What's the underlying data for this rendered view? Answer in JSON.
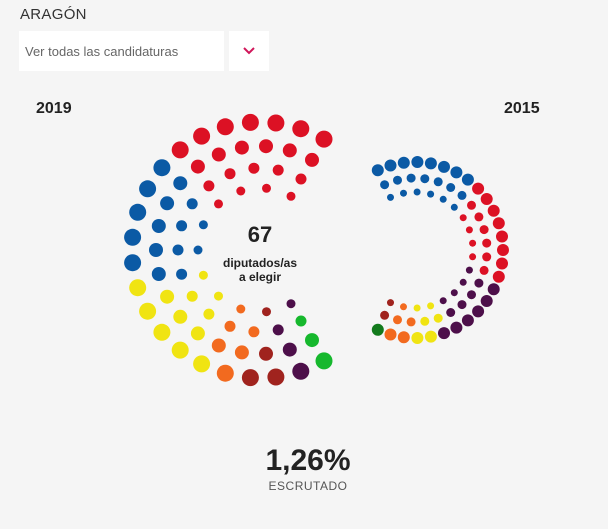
{
  "region": "ARAGÓN",
  "select": {
    "label": "Ver todas las candidaturas"
  },
  "years": {
    "current": "2019",
    "previous": "2015"
  },
  "center": {
    "seats": "67",
    "label_line1": "diputados/as",
    "label_line2": "a elegir"
  },
  "scrutiny": {
    "percent": "1,26%",
    "label": "ESCRUTADO"
  },
  "colors": {
    "blue": "#0b5aa5",
    "red": "#dc1124",
    "yellow": "#f0e412",
    "orange": "#f26a1f",
    "darkred": "#a0231e",
    "purple": "#4d0f4a",
    "green": "#16b82d",
    "darkgreen": "#127a1c",
    "chevron": "#d0165a"
  },
  "parliament_2019": [
    {
      "party_color": "red",
      "seats": 22
    },
    {
      "party_color": "blue",
      "seats": 16
    },
    {
      "party_color": "yellow",
      "seats": 12
    },
    {
      "party_color": "orange",
      "seats": 6
    },
    {
      "party_color": "darkred",
      "seats": 4
    },
    {
      "party_color": "purple",
      "seats": 4
    },
    {
      "party_color": "green",
      "seats": 3
    }
  ],
  "parliament_2015": [
    {
      "party_color": "blue",
      "seats": 21
    },
    {
      "party_color": "red",
      "seats": 18
    },
    {
      "party_color": "purple",
      "seats": 14
    },
    {
      "party_color": "yellow",
      "seats": 6
    },
    {
      "party_color": "orange",
      "seats": 5
    },
    {
      "party_color": "darkred",
      "seats": 2
    },
    {
      "party_color": "darkgreen",
      "seats": 1
    }
  ]
}
